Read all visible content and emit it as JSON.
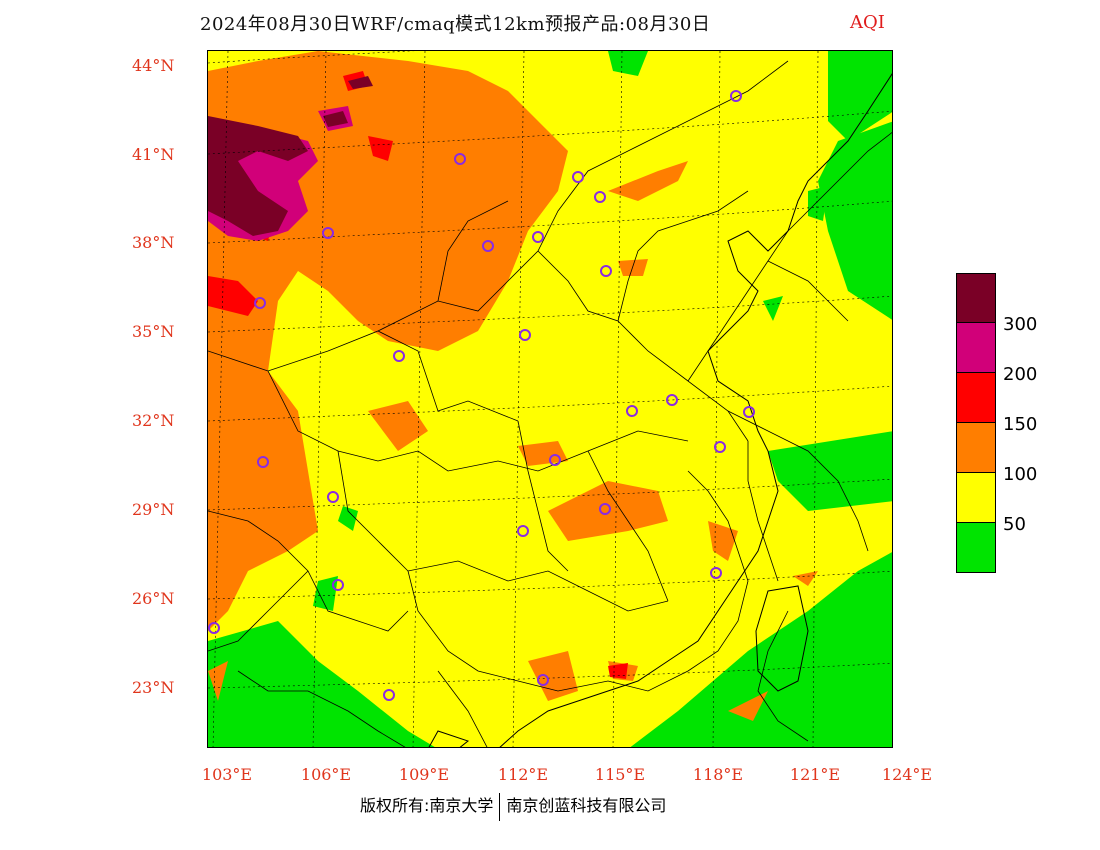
{
  "header": {
    "title": "2024年08月30日WRF/cmaq模式12km预报产品:08月30日",
    "variable": "AQI"
  },
  "axes": {
    "lat_ticks": [
      "44°N",
      "41°N",
      "38°N",
      "35°N",
      "32°N",
      "29°N",
      "26°N",
      "23°N"
    ],
    "lon_ticks": [
      "103°E",
      "106°E",
      "109°E",
      "112°E",
      "115°E",
      "118°E",
      "121°E",
      "124°E"
    ]
  },
  "legend": {
    "levels": [
      "300",
      "200",
      "150",
      "100",
      "50"
    ],
    "colors": [
      "#7a0026",
      "#d10079",
      "#ff0000",
      "#ff7e00",
      "#ffff00",
      "#00e400"
    ]
  },
  "footer": {
    "copyright_left": "版权所有:南京大学",
    "copyright_right": "南京创蓝科技有限公司"
  },
  "map_colors": {
    "good": "#00e400",
    "moderate": "#ffff00",
    "usg": "#ff7e00",
    "unhealthy": "#ff0000",
    "very_unhealthy": "#d10079",
    "hazardous": "#7a0026"
  }
}
